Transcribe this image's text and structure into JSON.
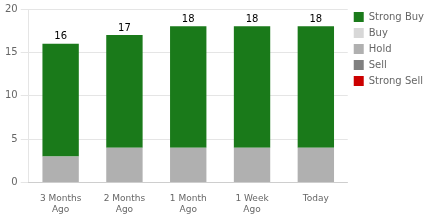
{
  "chart_data": {
    "type": "bar",
    "stacked": true,
    "categories": [
      "3 Months\nAgo",
      "2 Months\nAgo",
      "1 Month\nAgo",
      "1 Week\nAgo",
      "Today"
    ],
    "series": [
      {
        "name": "Strong Buy",
        "color": "#1a7a1a",
        "values": [
          13,
          13,
          14,
          14,
          14
        ]
      },
      {
        "name": "Buy",
        "color": "#d8d8d8",
        "values": [
          0,
          0,
          0,
          0,
          0
        ]
      },
      {
        "name": "Hold",
        "color": "#b0b0b0",
        "values": [
          3,
          4,
          4,
          4,
          4
        ]
      },
      {
        "name": "Sell",
        "color": "#808080",
        "values": [
          0,
          0,
          0,
          0,
          0
        ]
      },
      {
        "name": "Strong Sell",
        "color": "#cc0000",
        "values": [
          0,
          0,
          0,
          0,
          0
        ]
      }
    ],
    "totals": [
      16,
      17,
      18,
      18,
      18
    ],
    "ylim": [
      0,
      20
    ],
    "yticks": [
      0,
      5,
      10,
      15,
      20
    ],
    "grid": true,
    "legend": "right"
  }
}
